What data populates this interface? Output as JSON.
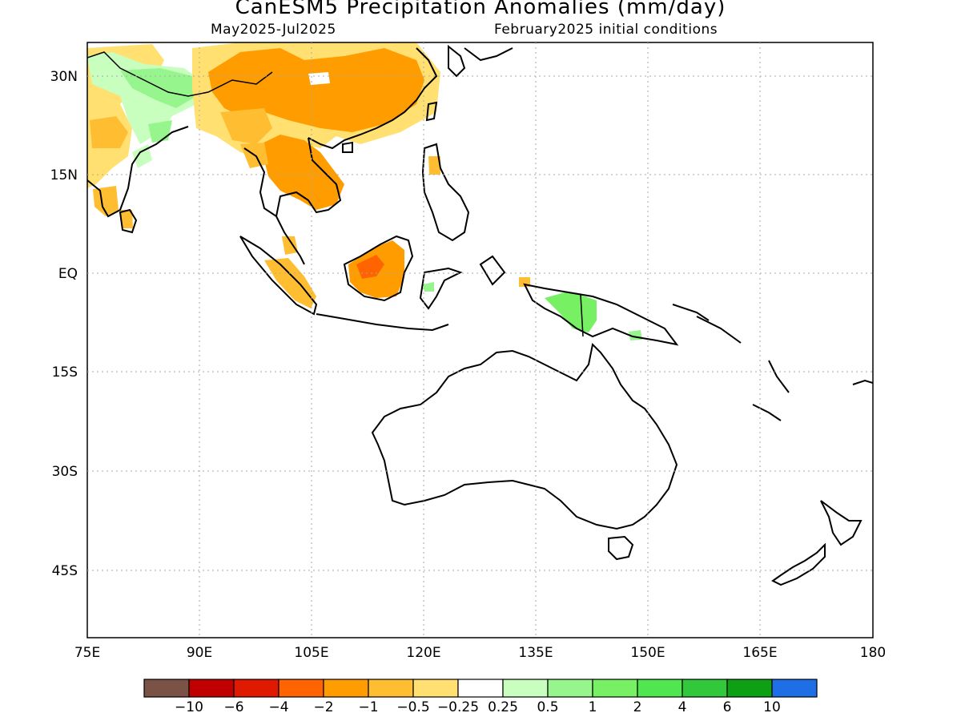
{
  "title": "CanESM5 Precipitation Anomalies (mm/day)",
  "subtitle_left": "May2025-Jul2025",
  "subtitle_right": "February2025 initial conditions",
  "axes": {
    "lat_labels": [
      "30N",
      "15N",
      "EQ",
      "15S",
      "30S",
      "45S"
    ],
    "lon_labels": [
      "75E",
      "90E",
      "105E",
      "120E",
      "135E",
      "150E",
      "165E",
      "180"
    ]
  },
  "colorbar": {
    "colors": [
      "#7a5246",
      "#c00000",
      "#e01a00",
      "#ff6400",
      "#ff9c00",
      "#ffbe32",
      "#ffe070",
      "#ffffff",
      "#c8ffbe",
      "#96f58c",
      "#78f064",
      "#50e650",
      "#32c83c",
      "#0ea014",
      "#1e6ee6"
    ],
    "labels": [
      "-10",
      "-6",
      "-4",
      "-2",
      "-1",
      "-0.5",
      "-0.25",
      "0.25",
      "0.5",
      "1",
      "2",
      "4",
      "6",
      "10"
    ]
  },
  "colors": {
    "dry_light": "#ffe070",
    "dry_mid": "#ffbe32",
    "dry_strong": "#ff9c00",
    "dry_very": "#ff6400",
    "wet_light": "#c8ffbe",
    "wet_mid": "#96f58c",
    "wet_strong": "#78f064"
  }
}
